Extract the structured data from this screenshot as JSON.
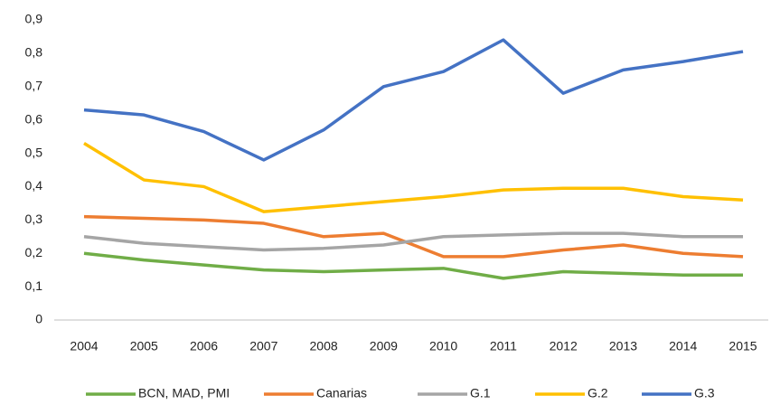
{
  "chart_data": {
    "type": "line",
    "categories": [
      "2004",
      "2005",
      "2006",
      "2007",
      "2008",
      "2009",
      "2010",
      "2011",
      "2012",
      "2013",
      "2014",
      "2015"
    ],
    "series": [
      {
        "name": "BCN, MAD, PMI",
        "color": "#70ad47",
        "values": [
          0.2,
          0.18,
          0.165,
          0.15,
          0.145,
          0.15,
          0.155,
          0.125,
          0.145,
          0.14,
          0.135,
          0.135
        ]
      },
      {
        "name": "Canarias",
        "color": "#ed7d31",
        "values": [
          0.31,
          0.305,
          0.3,
          0.29,
          0.25,
          0.26,
          0.19,
          0.19,
          0.21,
          0.225,
          0.2,
          0.19
        ]
      },
      {
        "name": "G.1",
        "color": "#a5a5a5",
        "values": [
          0.25,
          0.23,
          0.22,
          0.21,
          0.215,
          0.225,
          0.25,
          0.255,
          0.26,
          0.26,
          0.25,
          0.25
        ]
      },
      {
        "name": "G.2",
        "color": "#ffc000",
        "values": [
          0.53,
          0.42,
          0.4,
          0.325,
          0.34,
          0.355,
          0.37,
          0.39,
          0.395,
          0.395,
          0.37,
          0.36
        ]
      },
      {
        "name": "G.3",
        "color": "#4472c4",
        "values": [
          0.63,
          0.615,
          0.565,
          0.48,
          0.57,
          0.7,
          0.745,
          0.84,
          0.68,
          0.75,
          0.775,
          0.805
        ]
      }
    ],
    "ylim": [
      0,
      0.9
    ],
    "yticks": [
      0,
      {
        "value": 0.1,
        "label": "0,1"
      },
      {
        "value": 0.2,
        "label": "0,2"
      },
      {
        "value": 0.3,
        "label": "0,3"
      },
      {
        "value": 0.4,
        "label": "0,4"
      },
      {
        "value": 0.5,
        "label": "0,5"
      },
      {
        "value": 0.6,
        "label": "0,6"
      },
      {
        "value": 0.7,
        "label": "0,7"
      },
      {
        "value": 0.8,
        "label": "0,8"
      },
      {
        "value": 0.9,
        "label": "0,9"
      }
    ],
    "grid": false,
    "legend": "bottom"
  }
}
